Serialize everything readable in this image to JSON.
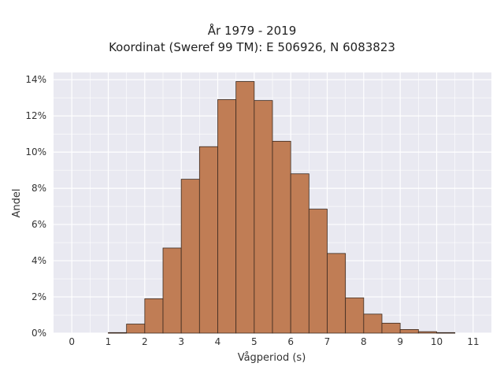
{
  "chart_data": {
    "type": "bar",
    "title": "År 1979 - 2019",
    "subtitle": "Koordinat (Sweref 99 TM): E 506926, N 6083823",
    "xlabel": "Vågperiod (s)",
    "ylabel": "Andel",
    "x_ticks": [
      "0",
      "1",
      "2",
      "3",
      "4",
      "5",
      "6",
      "7",
      "8",
      "9",
      "10",
      "11"
    ],
    "y_ticks": [
      "0%",
      "2%",
      "4%",
      "6%",
      "8%",
      "10%",
      "12%",
      "14%"
    ],
    "xlim": [
      -0.5,
      11.5
    ],
    "ylim": [
      0,
      14.4
    ],
    "bin_width": 0.5,
    "bins": [
      {
        "x0": 1.0,
        "value": 0.03
      },
      {
        "x0": 1.5,
        "value": 0.5
      },
      {
        "x0": 2.0,
        "value": 1.9
      },
      {
        "x0": 2.5,
        "value": 4.7
      },
      {
        "x0": 3.0,
        "value": 8.5
      },
      {
        "x0": 3.5,
        "value": 10.3
      },
      {
        "x0": 4.0,
        "value": 12.9
      },
      {
        "x0": 4.5,
        "value": 13.9
      },
      {
        "x0": 5.0,
        "value": 12.85
      },
      {
        "x0": 5.5,
        "value": 10.6
      },
      {
        "x0": 6.0,
        "value": 8.8
      },
      {
        "x0": 6.5,
        "value": 6.85
      },
      {
        "x0": 7.0,
        "value": 4.4
      },
      {
        "x0": 7.5,
        "value": 1.95
      },
      {
        "x0": 8.0,
        "value": 1.05
      },
      {
        "x0": 8.5,
        "value": 0.55
      },
      {
        "x0": 9.0,
        "value": 0.2
      },
      {
        "x0": 9.5,
        "value": 0.08
      },
      {
        "x0": 10.0,
        "value": 0.03
      }
    ],
    "grid": true,
    "colors": {
      "bar_fill": "#c07d55",
      "bar_edge": "#3b2a20",
      "plot_bg": "#e9e9f1",
      "grid": "#ffffff"
    }
  }
}
